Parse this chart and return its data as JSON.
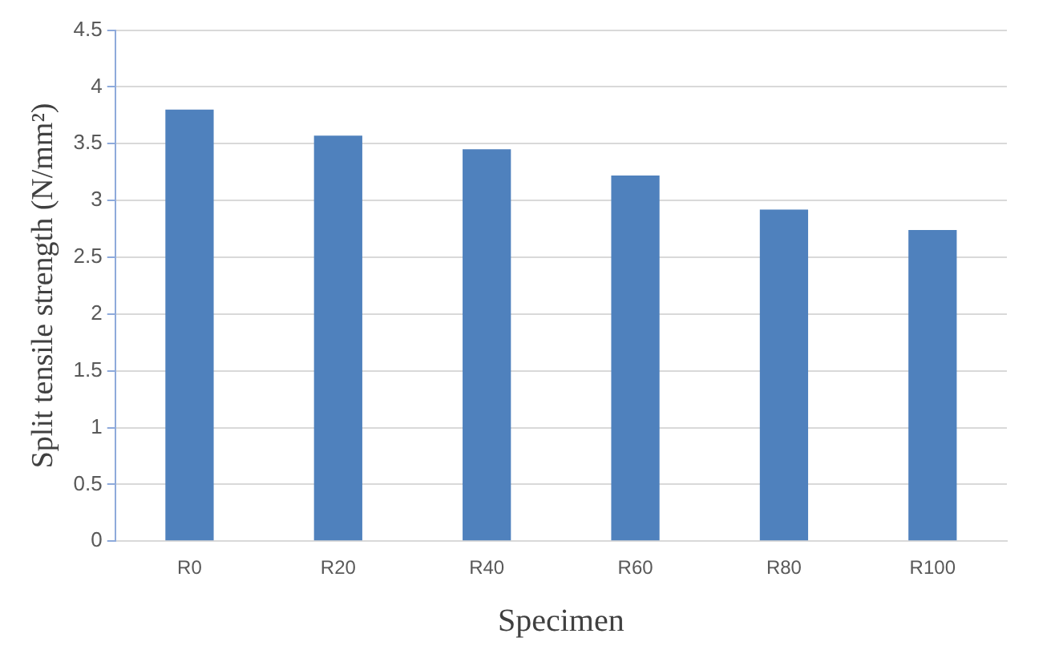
{
  "chart_data": {
    "type": "bar",
    "xlabel": "Specimen",
    "ylabel": "Split tensile strength (N/mm²)",
    "categories": [
      "R0",
      "R20",
      "R40",
      "R60",
      "R80",
      "R100"
    ],
    "values": [
      3.8,
      3.57,
      3.45,
      3.22,
      2.92,
      2.74
    ],
    "color": "#4f81bd",
    "ylim": [
      0,
      4.5
    ],
    "yticks": [
      0,
      0.5,
      1,
      1.5,
      2,
      2.5,
      3,
      3.5,
      4,
      4.5
    ],
    "grid": "y"
  }
}
